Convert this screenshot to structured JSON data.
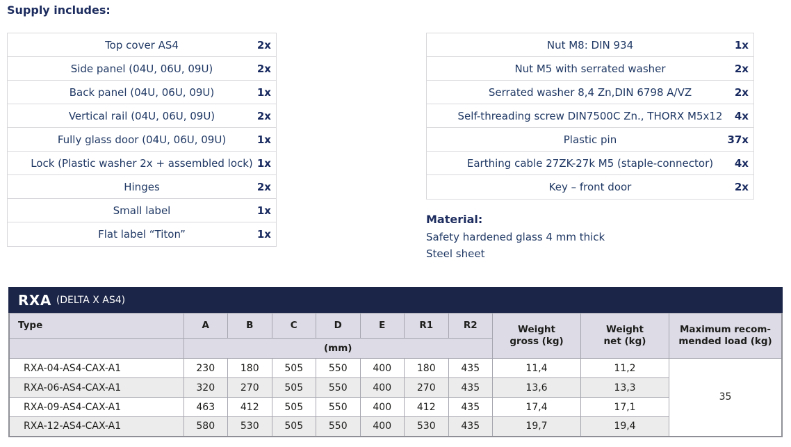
{
  "page": {
    "title": "Supply includes:"
  },
  "colors": {
    "navy_text": "#1f3864",
    "band_background": "#1b2547",
    "header_background": "#dcdbe6",
    "alt_row_background": "#ececec",
    "grid_border": "#a5a5af",
    "supply_border": "#d8d8dc"
  },
  "supply_left": {
    "items": [
      {
        "label": "Top cover AS4",
        "qty": "2x"
      },
      {
        "label": "Side panel (04U, 06U, 09U)",
        "qty": "2x"
      },
      {
        "label": "Back panel (04U, 06U, 09U)",
        "qty": "1x"
      },
      {
        "label": "Vertical rail (04U, 06U, 09U)",
        "qty": "2x"
      },
      {
        "label": "Fully glass door (04U, 06U, 09U)",
        "qty": "1x"
      },
      {
        "label": "Lock (Plastic washer 2x + assembled lock)",
        "qty": "1x"
      },
      {
        "label": "Hinges",
        "qty": "2x"
      },
      {
        "label": "Small label",
        "qty": "1x"
      },
      {
        "label": "Flat label “Titon”",
        "qty": "1x"
      }
    ]
  },
  "supply_right": {
    "items": [
      {
        "label": "Nut M8: DIN 934",
        "qty": "1x"
      },
      {
        "label": "Nut M5 with serrated washer",
        "qty": "2x"
      },
      {
        "label": "Serrated washer 8,4 Zn,DIN 6798 A/VZ",
        "qty": "2x"
      },
      {
        "label": "Self-threading screw DIN7500C Zn., THORX M5x12",
        "qty": "4x"
      },
      {
        "label": "Plastic pin",
        "qty": "37x"
      },
      {
        "label": "Earthing cable 27ZK-27k M5 (staple-connector)",
        "qty": "4x"
      },
      {
        "label": "Key – front door",
        "qty": "2x"
      }
    ]
  },
  "material": {
    "title": "Material:",
    "lines": [
      "Safety hardened glass 4 mm thick",
      "Steel sheet"
    ]
  },
  "product_table": {
    "band_title": "RXA",
    "band_subtitle": "(DELTA X AS4)",
    "type_header": "Type",
    "dim_headers": [
      "A",
      "B",
      "C",
      "D",
      "E",
      "R1",
      "R2"
    ],
    "unit_label": "(mm)",
    "weight_gross_header": "Weight\ngross (kg)",
    "weight_net_header": "Weight\nnet (kg)",
    "max_load_header": "Maximum recom-\nmended load (kg)",
    "max_load_value": "35",
    "rows": [
      {
        "type": "RXA-04-AS4-CAX-A1",
        "dims": [
          "230",
          "180",
          "505",
          "550",
          "400",
          "180",
          "435"
        ],
        "gross": "11,4",
        "net": "11,2"
      },
      {
        "type": "RXA-06-AS4-CAX-A1",
        "dims": [
          "320",
          "270",
          "505",
          "550",
          "400",
          "270",
          "435"
        ],
        "gross": "13,6",
        "net": "13,3"
      },
      {
        "type": "RXA-09-AS4-CAX-A1",
        "dims": [
          "463",
          "412",
          "505",
          "550",
          "400",
          "412",
          "435"
        ],
        "gross": "17,4",
        "net": "17,1"
      },
      {
        "type": "RXA-12-AS4-CAX-A1",
        "dims": [
          "580",
          "530",
          "505",
          "550",
          "400",
          "530",
          "435"
        ],
        "gross": "19,7",
        "net": "19,4"
      }
    ]
  }
}
